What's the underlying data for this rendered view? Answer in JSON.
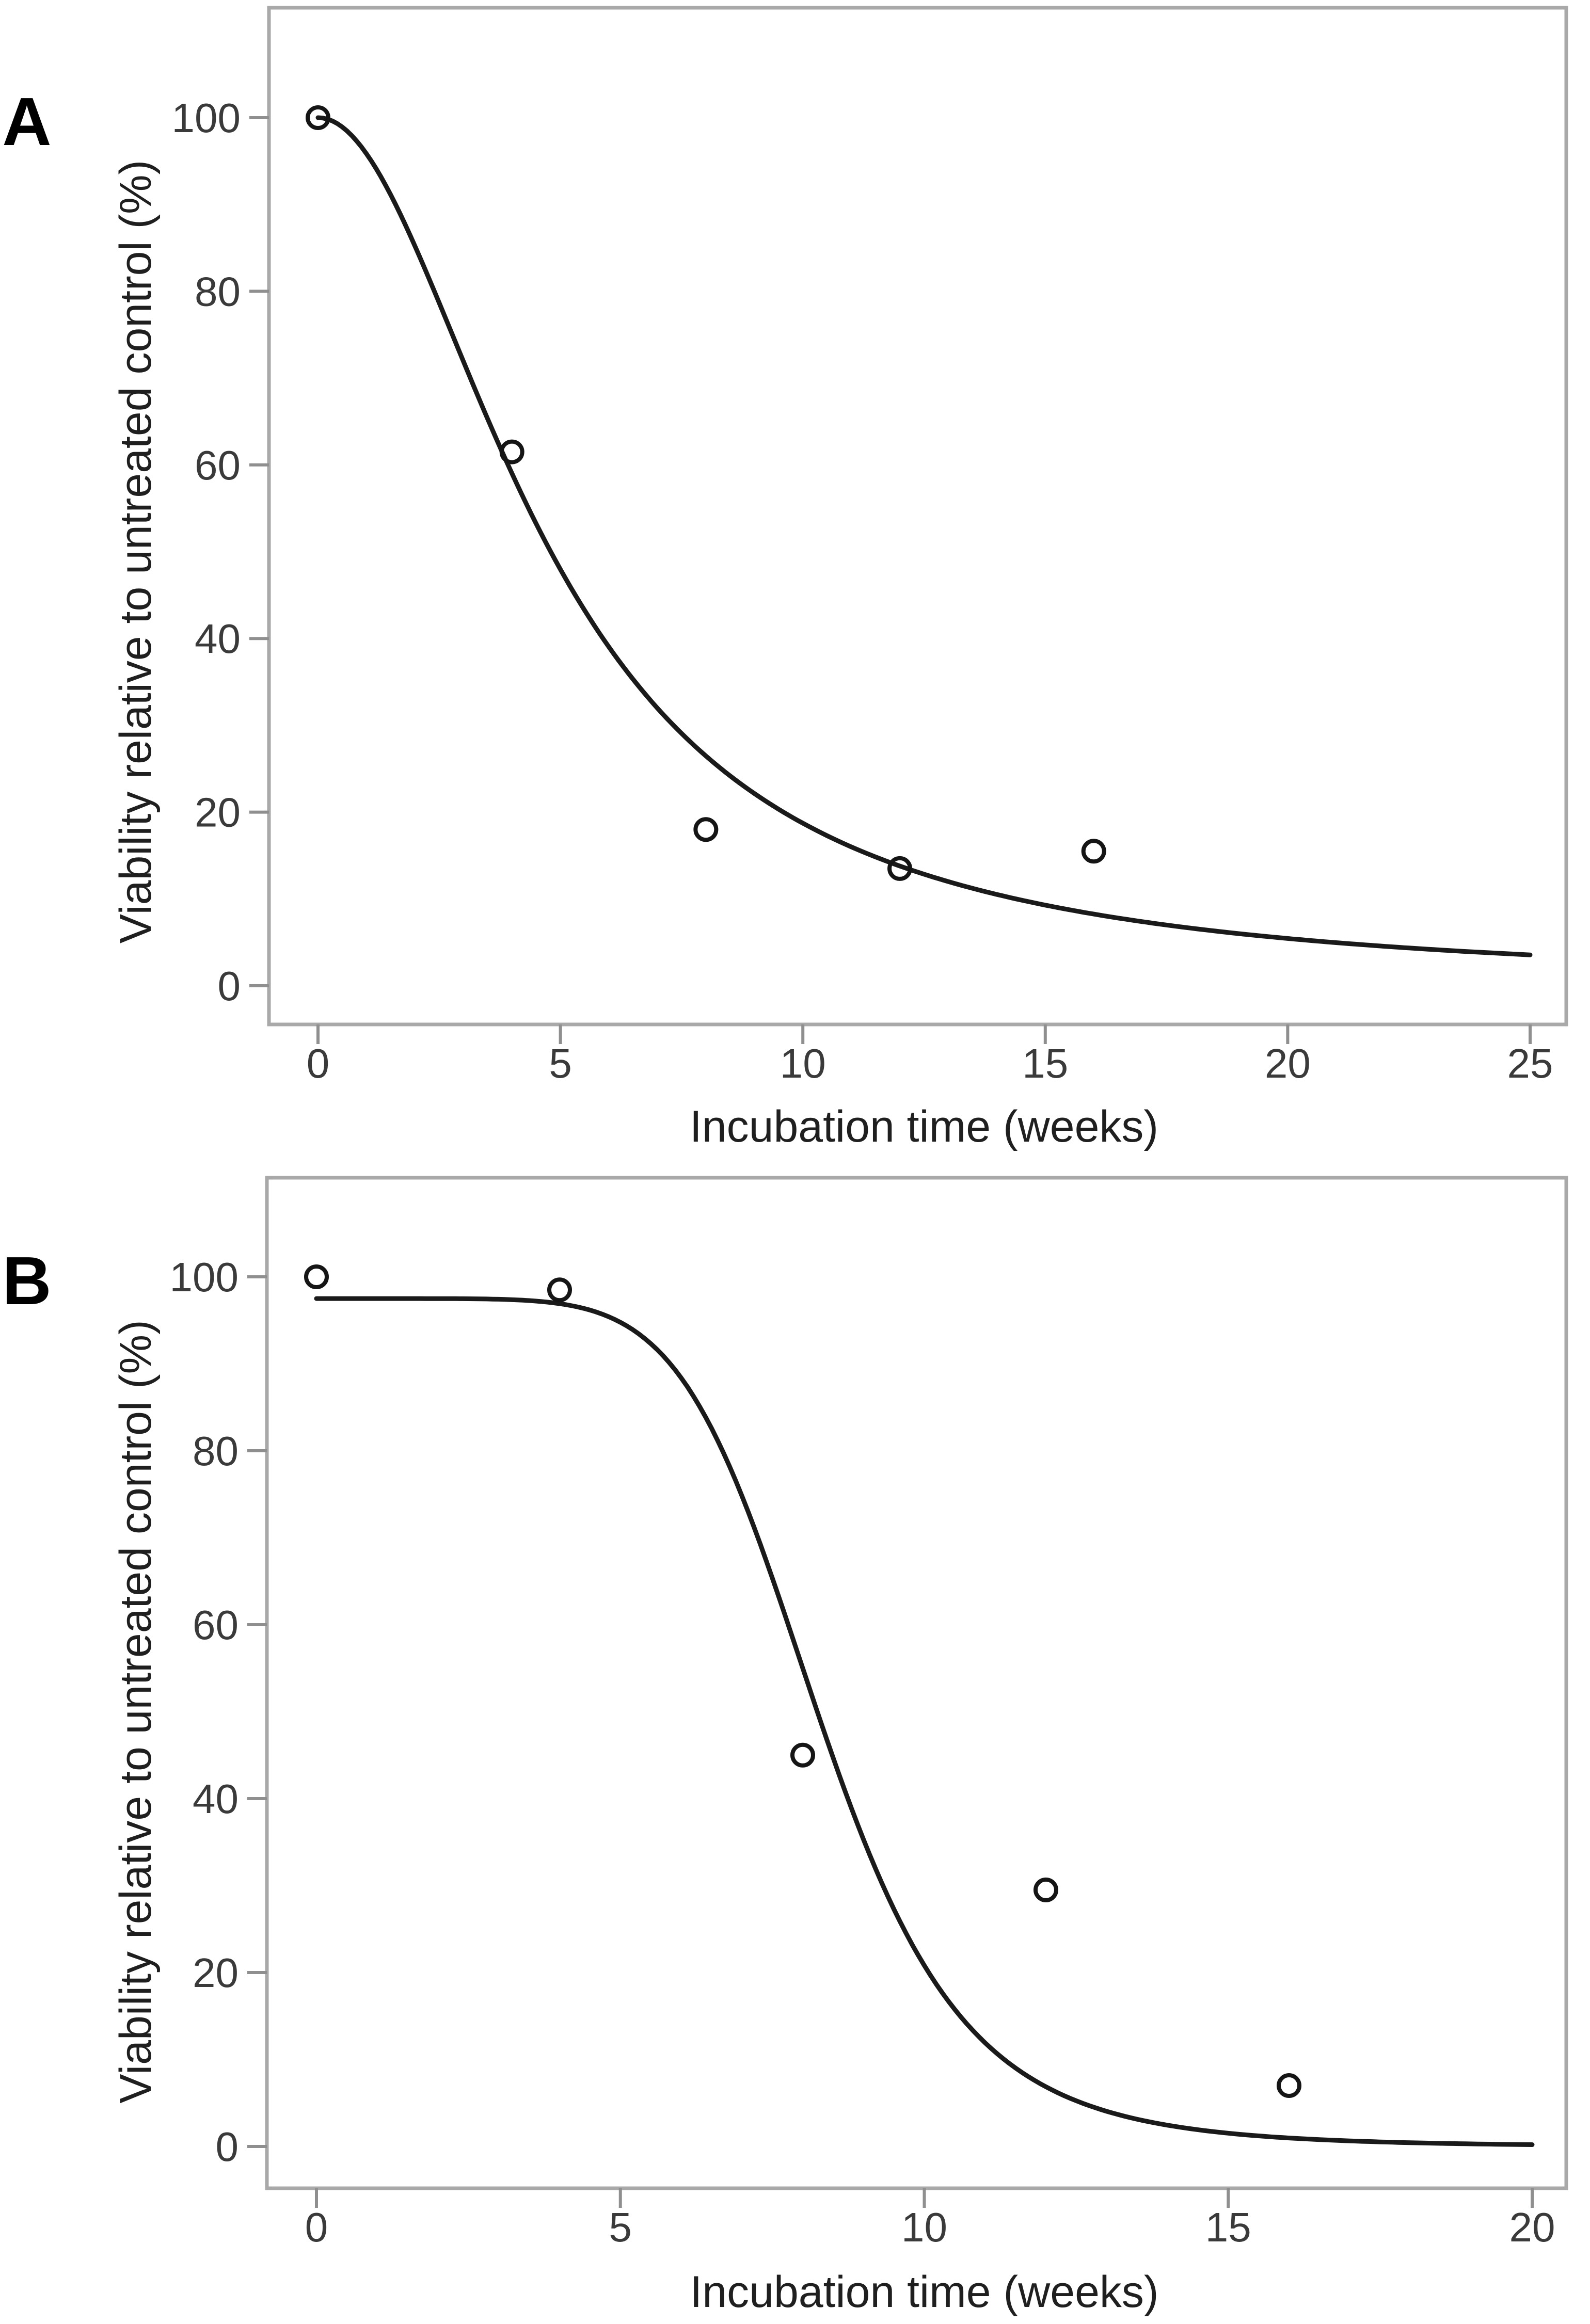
{
  "figure": {
    "background": "#ffffff",
    "colors": {
      "curve": "#1a1a1a",
      "marker": "#151515",
      "frame": "#a9a9a9",
      "tick": "#8f8f8f",
      "tick_label": "#3a3a3a",
      "axis_title": "#1f1f1f",
      "panel_letter": "#000000"
    },
    "marker_shape": "open-circle"
  },
  "chart_data": [
    {
      "panel": "A",
      "type": "scatter",
      "title": "",
      "xlabel": "Incubation time (weeks)",
      "ylabel": "Viability relative to untreated control (%)",
      "xlim": [
        0,
        25
      ],
      "ylim": [
        0,
        112
      ],
      "x_ticks": [
        0,
        5,
        10,
        15,
        20,
        25
      ],
      "y_ticks": [
        0,
        20,
        40,
        60,
        80,
        100
      ],
      "grid": false,
      "legend": "none",
      "points": {
        "x": [
          0,
          4,
          8,
          12,
          16
        ],
        "y": [
          100,
          61.5,
          18,
          13.5,
          15.5
        ]
      },
      "fit_curve": {
        "model": "log-logistic decay",
        "formula": "y = d / (1 + (x/e)^b)",
        "d": 100,
        "b": 2.0,
        "e": 4.8,
        "x_start": 0,
        "x_end": 25
      }
    },
    {
      "panel": "B",
      "type": "scatter",
      "title": "",
      "xlabel": "Incubation time (weeks)",
      "ylabel": "Viability relative to untreated control (%)",
      "xlim": [
        0,
        20
      ],
      "ylim": [
        0,
        112
      ],
      "x_ticks": [
        0,
        5,
        10,
        15,
        20
      ],
      "y_ticks": [
        0,
        20,
        40,
        60,
        80,
        100
      ],
      "grid": false,
      "legend": "none",
      "points": {
        "x": [
          0,
          4,
          8,
          12,
          16
        ],
        "y": [
          100,
          98.5,
          45,
          29.5,
          7
        ]
      },
      "fit_curve": {
        "model": "log-logistic decay (sigmoidal)",
        "formula": "y = d / (1 + (x/e)^b)",
        "d": 97.5,
        "b": 7.0,
        "e": 8.3,
        "x_start": 0,
        "x_end": 20
      }
    }
  ]
}
